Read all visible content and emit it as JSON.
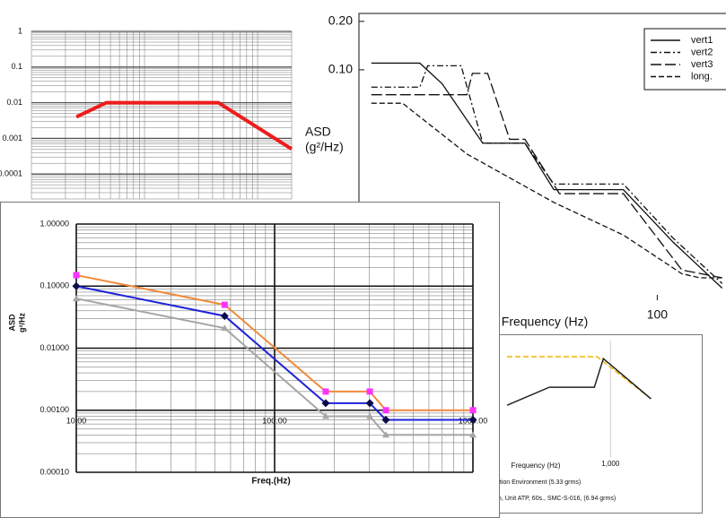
{
  "chart_data": [
    {
      "type": "line",
      "xscale": "log",
      "yscale": "log",
      "grid": true,
      "xlim": [
        10,
        2000
      ],
      "ylim": [
        2e-05,
        1
      ],
      "yticks": [
        1,
        0.1,
        0.01,
        0.001,
        0.0001
      ],
      "x": [
        25,
        46,
        450,
        2000
      ],
      "series": [
        {
          "color": "#ee1c1c",
          "linestyle": "solid",
          "values": [
            0.004,
            0.01,
            0.01,
            0.0005
          ]
        }
      ]
    },
    {
      "type": "line",
      "xscale": "log",
      "yscale": "log",
      "grid": false,
      "y_label": [
        "ASD",
        "(g²/Hz)"
      ],
      "x_label": "Frequency (Hz)",
      "xlim": [
        10,
        170
      ],
      "ylim": [
        0.0037,
        0.224
      ],
      "yticks": [
        {
          "value": 0.2,
          "label": "0.20"
        },
        {
          "value": 0.1,
          "label": "0.10"
        }
      ],
      "xticks": [
        100
      ],
      "legend": "upper right",
      "series": [
        {
          "name": "vert1",
          "color": "#111111",
          "linestyle": "solid",
          "x": [
            11,
            16,
            19,
            26,
            36,
            45,
            77,
            113,
            165
          ],
          "values": [
            0.11,
            0.11,
            0.082,
            0.035,
            0.035,
            0.018,
            0.018,
            0.0085,
            0.0044
          ]
        },
        {
          "name": "vert2",
          "color": "#111111",
          "linestyle": "dashdot",
          "x": [
            11,
            16,
            17,
            22,
            26,
            36,
            45,
            77,
            113,
            165
          ],
          "values": [
            0.078,
            0.078,
            0.106,
            0.106,
            0.035,
            0.035,
            0.0195,
            0.0195,
            0.009,
            0.0047
          ]
        },
        {
          "name": "vert3",
          "color": "#111111",
          "linestyle": "longdash",
          "x": [
            11,
            23,
            24,
            27,
            32,
            36,
            47,
            77,
            121,
            165
          ],
          "values": [
            0.07,
            0.07,
            0.095,
            0.095,
            0.037,
            0.037,
            0.017,
            0.017,
            0.0057,
            0.0051
          ]
        },
        {
          "name": "long.",
          "color": "#111111",
          "linestyle": "dashed",
          "x": [
            11,
            14,
            23,
            45,
            77,
            121,
            139,
            165
          ],
          "values": [
            0.062,
            0.062,
            0.03,
            0.015,
            0.0094,
            0.0054,
            0.0051,
            0.0051
          ]
        }
      ]
    },
    {
      "type": "line",
      "xscale": "log",
      "yscale": "log",
      "grid": true,
      "x_label": "Frequency (Hz)",
      "xlim": [
        100,
        3000
      ],
      "ylim": [
        0.0001,
        1
      ],
      "xticks": [
        {
          "value": 1000,
          "label": "1,000"
        }
      ],
      "series": [
        {
          "name": "ation Environment (5.33 grms)",
          "color": "#f0b400",
          "linestyle": "dashed",
          "x": [
            171,
            794,
            1995
          ],
          "values": [
            0.28,
            0.28,
            0.01
          ]
        },
        {
          "name": "m, Unit ATP, 60s., SMC-S-016, (6.94 grms)",
          "color": "#222222",
          "linestyle": "solid",
          "x": [
            171,
            352,
            759,
            885,
            1995
          ],
          "values": [
            0.006,
            0.025,
            0.025,
            0.24,
            0.01
          ]
        }
      ]
    },
    {
      "type": "line",
      "xscale": "log",
      "yscale": "log",
      "grid": true,
      "y_label": [
        "ASD",
        "g²/Hz"
      ],
      "x_label": "Freq.(Hz)",
      "xlim": [
        10,
        1000
      ],
      "ylim": [
        0.0001,
        1
      ],
      "yticks": [
        {
          "value": 1,
          "label": "1.00000"
        },
        {
          "value": 0.1,
          "label": "0.10000"
        },
        {
          "value": 0.01,
          "label": "0.01000"
        },
        {
          "value": 0.001,
          "label": "0.00100"
        },
        {
          "value": 0.0001,
          "label": "0.00010"
        }
      ],
      "xticks": [
        {
          "value": 10,
          "label": "10.00"
        },
        {
          "value": 100,
          "label": "100.00"
        },
        {
          "value": 1000,
          "label": "1000.00"
        }
      ],
      "x": [
        10,
        56,
        181,
        302,
        364,
        1000
      ],
      "series": [
        {
          "color": "#f08a3c",
          "linestyle": "solid",
          "marker": "square",
          "marker_color": "#ff33ff",
          "values": [
            0.15,
            0.05,
            0.002,
            0.002,
            0.001,
            0.001
          ]
        },
        {
          "color": "#1f22d8",
          "linestyle": "solid",
          "marker": "diamond",
          "marker_color": "#0b0b4a",
          "values": [
            0.1,
            0.033,
            0.0013,
            0.0013,
            0.0007,
            0.0007
          ]
        },
        {
          "color": "#a6a6a6",
          "linestyle": "solid",
          "marker": "triangle",
          "marker_color": "#a6a6a6",
          "values": [
            0.063,
            0.021,
            0.0008,
            0.0008,
            0.0004,
            0.0004
          ]
        }
      ]
    }
  ]
}
